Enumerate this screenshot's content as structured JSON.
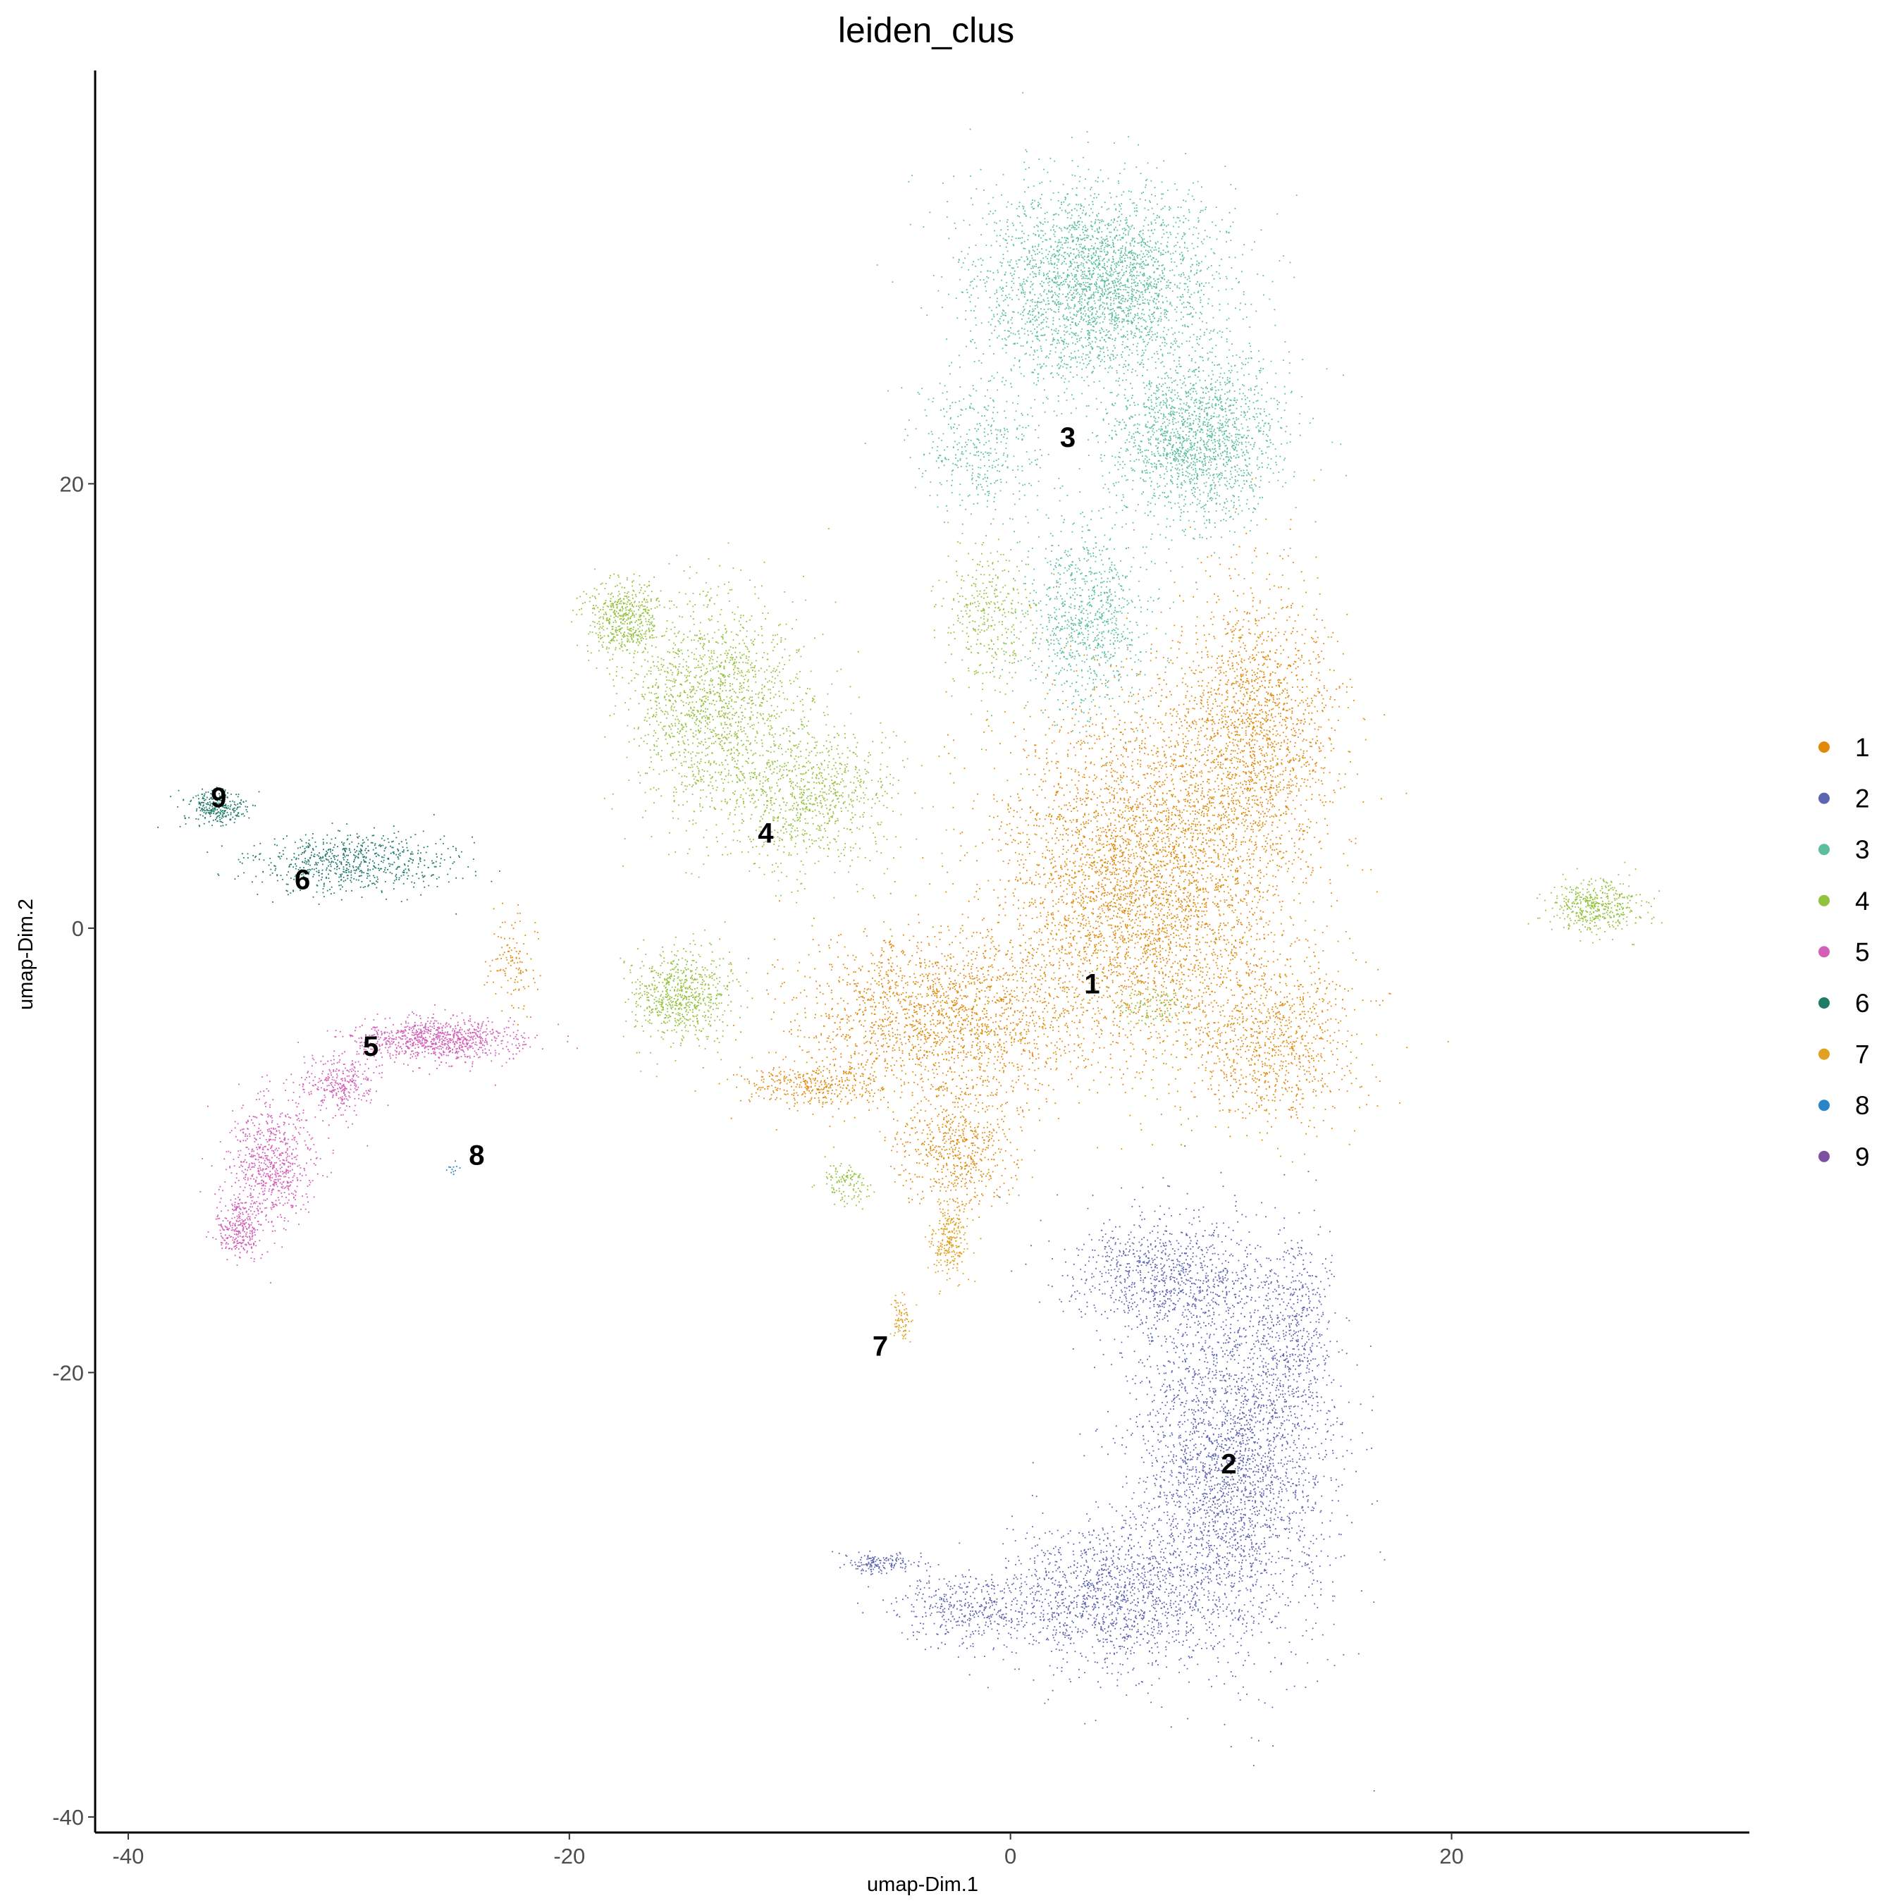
{
  "chart_data": {
    "type": "scatter",
    "title": "leiden_clus",
    "xlabel": "umap-Dim.1",
    "ylabel": "umap-Dim.2",
    "xlim": [
      -41.5,
      33.5
    ],
    "ylim": [
      -40.7,
      38.6
    ],
    "xticks": [
      -40,
      -20,
      0,
      20
    ],
    "yticks": [
      -40,
      -20,
      0,
      20
    ],
    "grid": false,
    "legend_position": "right",
    "legend": [
      "1",
      "2",
      "3",
      "4",
      "5",
      "6",
      "7",
      "8",
      "9"
    ],
    "colors": {
      "1": "#e08a0b",
      "2": "#5b65b0",
      "3": "#5bbf9f",
      "4": "#93c23d",
      "5": "#d35fb7",
      "6": "#1f7a68",
      "7": "#e0a020",
      "8": "#2a85c8",
      "9": "#7d4fa0"
    },
    "cluster_labels": [
      {
        "label": "1",
        "x": 3.7,
        "y": -2.5
      },
      {
        "label": "2",
        "x": 9.9,
        "y": -24.1
      },
      {
        "label": "3",
        "x": 2.6,
        "y": 22.1
      },
      {
        "label": "4",
        "x": -11.1,
        "y": 4.3
      },
      {
        "label": "5",
        "x": -29.0,
        "y": -5.3
      },
      {
        "label": "6",
        "x": -32.1,
        "y": 2.2
      },
      {
        "label": "7",
        "x": -5.9,
        "y": -18.8
      },
      {
        "label": "8",
        "x": -24.2,
        "y": -10.2
      },
      {
        "label": "9",
        "x": -35.9,
        "y": 5.9
      }
    ],
    "regions": [
      {
        "cluster": "1",
        "center": [
          6.0,
          2.0
        ],
        "spread": [
          6.0,
          7.0
        ],
        "n": 4200
      },
      {
        "cluster": "1",
        "center": [
          -3.0,
          -4.0
        ],
        "spread": [
          6.0,
          3.5
        ],
        "n": 2000
      },
      {
        "cluster": "1",
        "center": [
          11.0,
          9.0
        ],
        "spread": [
          3.5,
          6.0
        ],
        "n": 1800
      },
      {
        "cluster": "1",
        "center": [
          12.0,
          -5.0
        ],
        "spread": [
          3.5,
          3.5
        ],
        "n": 900
      },
      {
        "cluster": "1",
        "center": [
          -2.5,
          -10.0
        ],
        "spread": [
          2.5,
          2.5
        ],
        "n": 600
      },
      {
        "cluster": "1",
        "center": [
          -9.0,
          -7.0
        ],
        "spread": [
          3.0,
          0.8
        ],
        "n": 350
      },
      {
        "cluster": "1",
        "center": [
          -22.5,
          -1.5
        ],
        "spread": [
          1.0,
          2.0
        ],
        "n": 120
      },
      {
        "cluster": "2",
        "center": [
          10.0,
          -24.0
        ],
        "spread": [
          4.0,
          7.5
        ],
        "n": 3000
      },
      {
        "cluster": "2",
        "center": [
          4.5,
          -30.0
        ],
        "spread": [
          4.5,
          3.0
        ],
        "n": 1300
      },
      {
        "cluster": "2",
        "center": [
          7.0,
          -15.5
        ],
        "spread": [
          4.0,
          2.5
        ],
        "n": 900
      },
      {
        "cluster": "2",
        "center": [
          -2.0,
          -30.5
        ],
        "spread": [
          3.0,
          1.5
        ],
        "n": 400
      },
      {
        "cluster": "2",
        "center": [
          13.0,
          -18.0
        ],
        "spread": [
          1.5,
          4.0
        ],
        "n": 400
      },
      {
        "cluster": "2",
        "center": [
          -6.0,
          -28.5
        ],
        "spread": [
          1.5,
          0.4
        ],
        "n": 150
      },
      {
        "cluster": "3",
        "center": [
          4.0,
          29.0
        ],
        "spread": [
          5.0,
          4.0
        ],
        "n": 3000
      },
      {
        "cluster": "3",
        "center": [
          8.5,
          22.0
        ],
        "spread": [
          3.5,
          3.5
        ],
        "n": 1800
      },
      {
        "cluster": "3",
        "center": [
          3.5,
          14.0
        ],
        "spread": [
          2.5,
          4.0
        ],
        "n": 900
      },
      {
        "cluster": "3",
        "center": [
          -1.5,
          21.5
        ],
        "spread": [
          3.0,
          3.0
        ],
        "n": 400
      },
      {
        "cluster": "4",
        "center": [
          -13.5,
          10.0
        ],
        "spread": [
          3.5,
          4.5
        ],
        "n": 1500
      },
      {
        "cluster": "4",
        "center": [
          -17.5,
          14.0
        ],
        "spread": [
          1.5,
          1.5
        ],
        "n": 500
      },
      {
        "cluster": "4",
        "center": [
          -9.0,
          6.0
        ],
        "spread": [
          3.5,
          3.0
        ],
        "n": 900
      },
      {
        "cluster": "4",
        "center": [
          -15.0,
          -3.0
        ],
        "spread": [
          2.0,
          1.8
        ],
        "n": 700
      },
      {
        "cluster": "4",
        "center": [
          -1.0,
          14.0
        ],
        "spread": [
          2.0,
          3.0
        ],
        "n": 350
      },
      {
        "cluster": "4",
        "center": [
          26.5,
          1.0
        ],
        "spread": [
          2.0,
          1.0
        ],
        "n": 450
      },
      {
        "cluster": "4",
        "center": [
          -7.5,
          -11.5
        ],
        "spread": [
          0.9,
          0.9
        ],
        "n": 120
      },
      {
        "cluster": "4",
        "center": [
          6.5,
          -3.5
        ],
        "spread": [
          1.5,
          0.8
        ],
        "n": 100
      },
      {
        "cluster": "5",
        "center": [
          -26.0,
          -5.0
        ],
        "spread": [
          3.5,
          0.9
        ],
        "n": 900
      },
      {
        "cluster": "5",
        "center": [
          -33.5,
          -10.5
        ],
        "spread": [
          1.8,
          2.5
        ],
        "n": 700
      },
      {
        "cluster": "5",
        "center": [
          -35.0,
          -13.5
        ],
        "spread": [
          1.0,
          1.3
        ],
        "n": 300
      },
      {
        "cluster": "5",
        "center": [
          -30.5,
          -7.0
        ],
        "spread": [
          1.5,
          1.2
        ],
        "n": 300
      },
      {
        "cluster": "6",
        "center": [
          -30.0,
          3.0
        ],
        "spread": [
          4.0,
          1.2
        ],
        "n": 700
      },
      {
        "cluster": "6",
        "center": [
          -36.0,
          5.5
        ],
        "spread": [
          1.2,
          0.7
        ],
        "n": 300
      },
      {
        "cluster": "7",
        "center": [
          -2.8,
          -14.0
        ],
        "spread": [
          0.8,
          1.5
        ],
        "n": 250
      },
      {
        "cluster": "7",
        "center": [
          -5.0,
          -17.5
        ],
        "spread": [
          0.4,
          1.0
        ],
        "n": 80
      },
      {
        "cluster": "8",
        "center": [
          -25.3,
          -10.8
        ],
        "spread": [
          0.25,
          0.25
        ],
        "n": 12
      },
      {
        "cluster": "9",
        "center": [
          -35.9,
          5.9
        ],
        "spread": [
          0.3,
          0.3
        ],
        "n": 6
      }
    ]
  }
}
